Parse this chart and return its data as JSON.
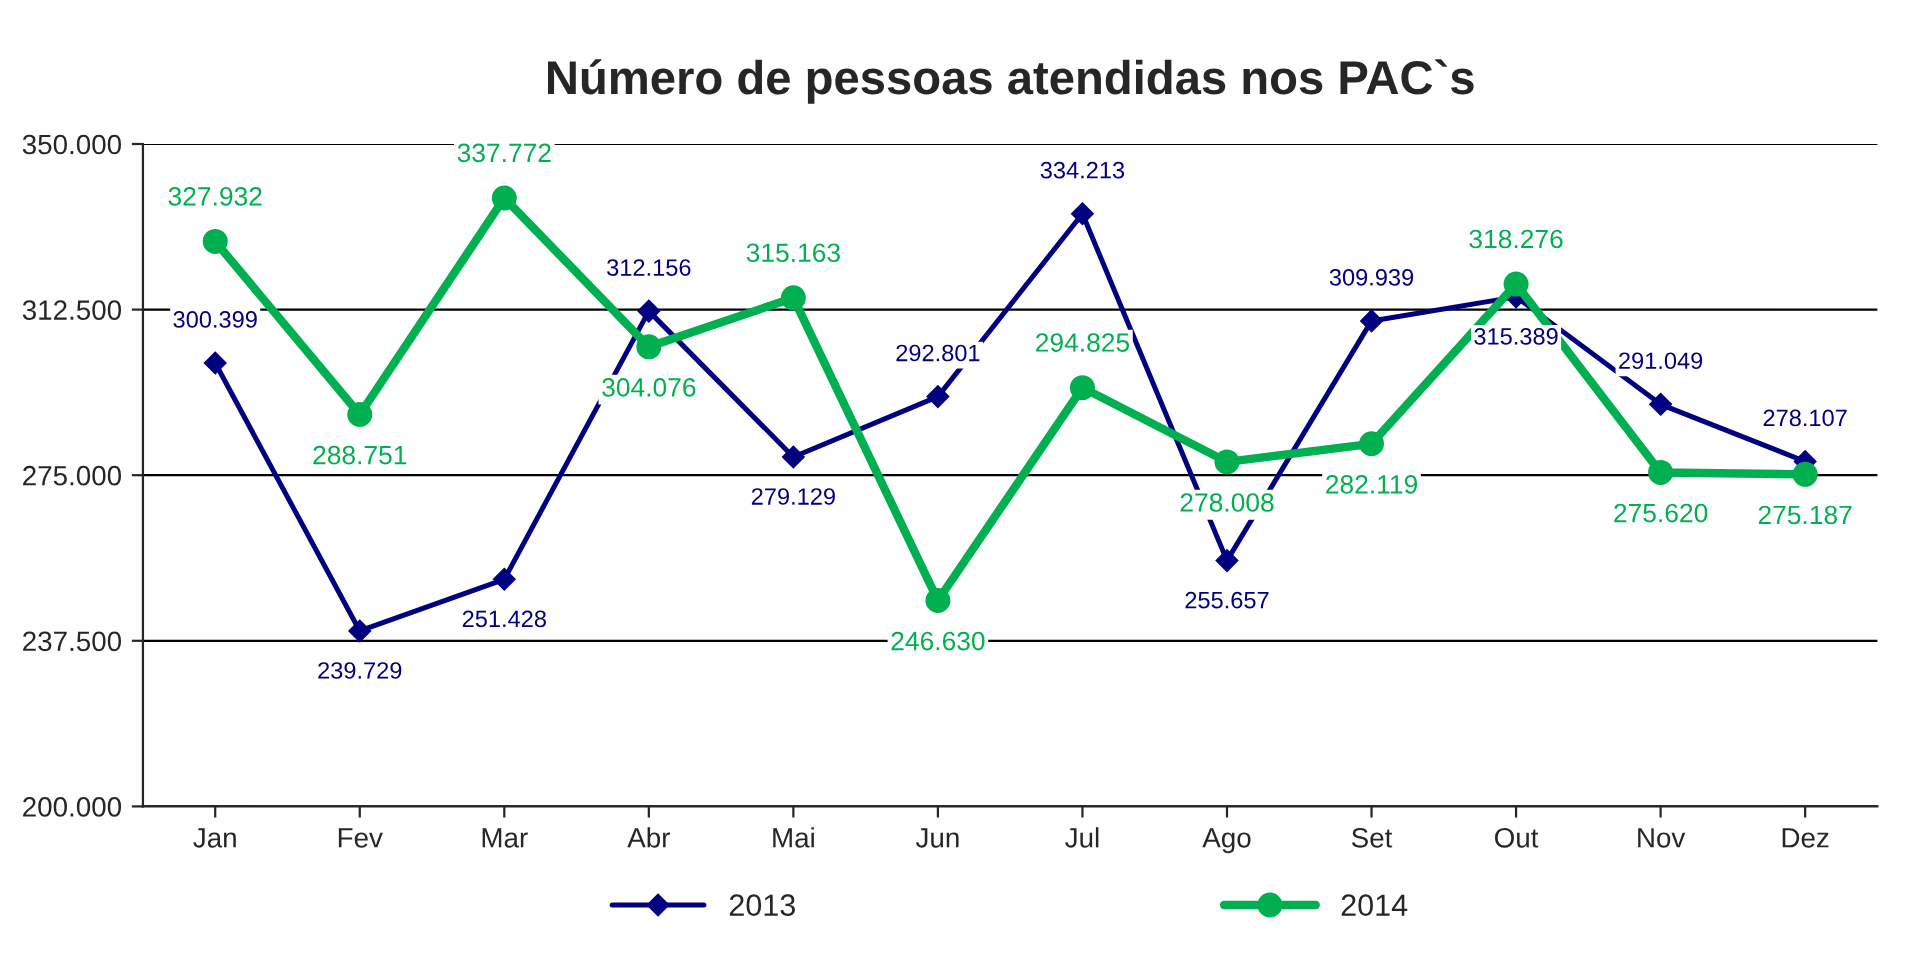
{
  "chart_data": {
    "type": "line",
    "title": "Número de pessoas atendidas nos PAC`s",
    "categories": [
      "Jan",
      "Fev",
      "Mar",
      "Abr",
      "Mai",
      "Jun",
      "Jul",
      "Ago",
      "Set",
      "Out",
      "Nov",
      "Dez"
    ],
    "series": [
      {
        "name": "2013",
        "color": "#000080",
        "marker": "diamond",
        "values": [
          300399,
          239729,
          251428,
          312156,
          279129,
          292801,
          334213,
          255657,
          309939,
          315389,
          291049,
          278107
        ],
        "value_labels": [
          "300.399",
          "239.729",
          "251.428",
          "312.156",
          "279.129",
          "292.801",
          "334.213",
          "255.657",
          "309.939",
          "315.389",
          "291.049",
          "278.107"
        ]
      },
      {
        "name": "2014",
        "color": "#00b050",
        "marker": "circle",
        "values": [
          327932,
          288751,
          337772,
          304076,
          315163,
          246630,
          294825,
          278008,
          282119,
          318276,
          275620,
          275187
        ],
        "value_labels": [
          "327.932",
          "288.751",
          "337.772",
          "304.076",
          "315.163",
          "246.630",
          "294.825",
          "278.008",
          "282.119",
          "318.276",
          "275.620",
          "275.187"
        ]
      }
    ],
    "ylim": [
      200000,
      350000
    ],
    "yticks": [
      {
        "value": 200000,
        "label": "200.000"
      },
      {
        "value": 237500,
        "label": "237.500"
      },
      {
        "value": 275000,
        "label": "275.000"
      },
      {
        "value": 312500,
        "label": "312.500"
      },
      {
        "value": 350000,
        "label": "350.000"
      }
    ],
    "grid": "y",
    "legend": "bottom",
    "line_style": "solid"
  }
}
